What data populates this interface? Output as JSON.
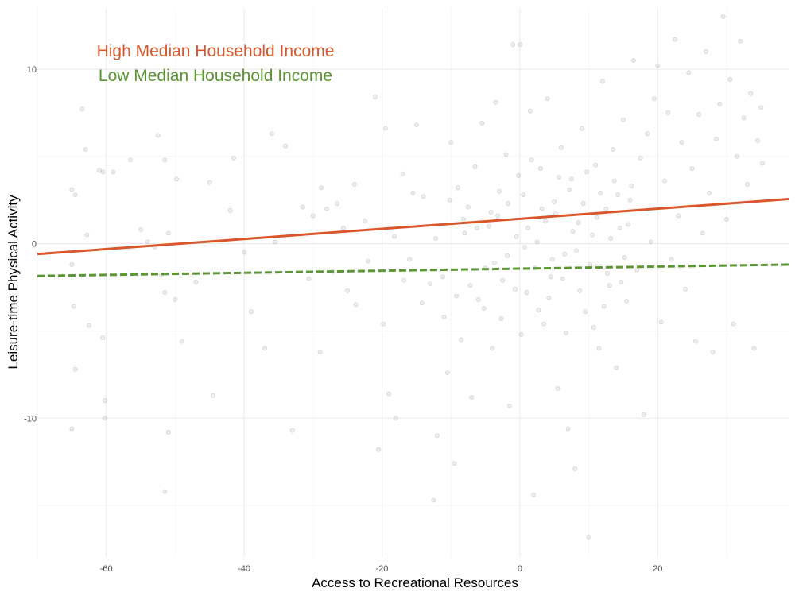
{
  "chart_data": {
    "type": "scatter",
    "title": "",
    "xlabel": "Access to Recreational Resources",
    "ylabel": "Leisure-time Physical Activity",
    "xlim": [
      -70,
      39
    ],
    "ylim": [
      -18,
      13.5
    ],
    "x_ticks": [
      -60,
      -40,
      -20,
      0,
      20
    ],
    "y_ticks": [
      -10,
      0,
      10
    ],
    "grid": true,
    "legend_position": "top-left",
    "points_color": "#999999",
    "series": [
      {
        "name": "High Median Household Income",
        "type": "line",
        "style": "solid",
        "color": "#d9572b",
        "x": [
          -70,
          39
        ],
        "y": [
          -0.6,
          2.55
        ]
      },
      {
        "name": "Low Median Household Income",
        "type": "line",
        "style": "dashed",
        "color": "#5a9632",
        "x": [
          -70,
          39
        ],
        "y": [
          -1.85,
          -1.2
        ]
      }
    ],
    "scatter_points": [
      [
        -65,
        3.1
      ],
      [
        -64.5,
        2.8
      ],
      [
        -63.5,
        7.7
      ],
      [
        -63,
        5.4
      ],
      [
        -62.8,
        0.5
      ],
      [
        -65,
        -1.2
      ],
      [
        -64.7,
        -3.6
      ],
      [
        -64.5,
        -7.2
      ],
      [
        -65,
        -10.6
      ],
      [
        -61,
        4.2
      ],
      [
        -60.5,
        4.1
      ],
      [
        -59,
        4.1
      ],
      [
        -60.5,
        -5.4
      ],
      [
        -60.2,
        -9.0
      ],
      [
        -60.2,
        -10.0
      ],
      [
        -62.5,
        -4.7
      ],
      [
        -56.5,
        4.8
      ],
      [
        -55,
        0.8
      ],
      [
        -54,
        0.1
      ],
      [
        -53,
        -0.2
      ],
      [
        -52.5,
        6.2
      ],
      [
        -51.5,
        4.8
      ],
      [
        -51,
        0.6
      ],
      [
        -52,
        -1.8
      ],
      [
        -51.5,
        -2.8
      ],
      [
        -50,
        -3.2
      ],
      [
        -51,
        -10.8
      ],
      [
        -51.5,
        -14.2
      ],
      [
        -49.8,
        3.7
      ],
      [
        -49,
        -5.6
      ],
      [
        -47,
        -2.2
      ],
      [
        -45,
        3.5
      ],
      [
        -44.5,
        -8.7
      ],
      [
        -42,
        1.9
      ],
      [
        -41.5,
        4.9
      ],
      [
        -40,
        -0.5
      ],
      [
        -39,
        -3.9
      ],
      [
        -37,
        -6.0
      ],
      [
        -36,
        6.3
      ],
      [
        -35.5,
        0.1
      ],
      [
        -34,
        5.6
      ],
      [
        -33,
        -10.7
      ],
      [
        -31.5,
        2.1
      ],
      [
        -30,
        1.6
      ],
      [
        -29,
        -6.2
      ],
      [
        -28,
        2.0
      ],
      [
        -26.5,
        2.3
      ],
      [
        -25,
        -2.7
      ],
      [
        -24,
        3.4
      ],
      [
        -22,
        -1.0
      ],
      [
        -21,
        8.4
      ],
      [
        -20.5,
        -11.8
      ],
      [
        -19.5,
        6.6
      ],
      [
        -19,
        -8.6
      ],
      [
        -18,
        -10.0
      ],
      [
        -17,
        4.0
      ],
      [
        -16,
        -0.9
      ],
      [
        -15,
        6.8
      ],
      [
        -14,
        2.7
      ],
      [
        -13,
        -2.3
      ],
      [
        -12.5,
        -14.7
      ],
      [
        -12,
        -11.0
      ],
      [
        -11,
        -4.2
      ],
      [
        -10.5,
        -7.4
      ],
      [
        -10,
        5.8
      ],
      [
        -9.5,
        -12.6
      ],
      [
        -9,
        3.2
      ],
      [
        -8.5,
        -5.5
      ],
      [
        -8,
        0.6
      ],
      [
        -7.5,
        2.1
      ],
      [
        -7,
        -8.8
      ],
      [
        -6.5,
        4.4
      ],
      [
        -6,
        -3.2
      ],
      [
        -5.5,
        6.9
      ],
      [
        -5,
        -1.4
      ],
      [
        -4.5,
        1.0
      ],
      [
        -4,
        -6.0
      ],
      [
        -3.5,
        8.1
      ],
      [
        -3,
        3.0
      ],
      [
        -2.5,
        -2.1
      ],
      [
        -2,
        5.1
      ],
      [
        -1.5,
        -9.3
      ],
      [
        -1,
        11.4
      ],
      [
        -0.5,
        0.4
      ],
      [
        0,
        11.4
      ],
      [
        0.2,
        -5.2
      ],
      [
        0.5,
        2.8
      ],
      [
        1,
        -2.8
      ],
      [
        1.5,
        7.6
      ],
      [
        2,
        -14.4
      ],
      [
        2.5,
        0.1
      ],
      [
        3,
        4.3
      ],
      [
        3.5,
        -4.6
      ],
      [
        4,
        8.3
      ],
      [
        4.5,
        -1.9
      ],
      [
        5,
        2.4
      ],
      [
        5.5,
        -8.3
      ],
      [
        6,
        5.5
      ],
      [
        6.5,
        -0.6
      ],
      [
        7,
        -10.6
      ],
      [
        7.5,
        3.7
      ],
      [
        8,
        -12.9
      ],
      [
        8.5,
        1.2
      ],
      [
        9,
        6.6
      ],
      [
        9.5,
        -3.9
      ],
      [
        10,
        -16.8
      ],
      [
        10.5,
        0.5
      ],
      [
        11,
        4.5
      ],
      [
        11.5,
        -6.0
      ],
      [
        12,
        9.3
      ],
      [
        12.5,
        2.0
      ],
      [
        13,
        -2.4
      ],
      [
        13.5,
        5.4
      ],
      [
        14,
        -7.1
      ],
      [
        14.5,
        0.9
      ],
      [
        15,
        7.1
      ],
      [
        15.5,
        -3.3
      ],
      [
        16,
        2.5
      ],
      [
        16.5,
        10.5
      ],
      [
        17,
        -1.5
      ],
      [
        17.5,
        4.9
      ],
      [
        18,
        -9.8
      ],
      [
        18.5,
        6.3
      ],
      [
        19,
        0.1
      ],
      [
        19.5,
        8.3
      ],
      [
        20,
        10.2
      ],
      [
        20.5,
        -4.5
      ],
      [
        21,
        3.6
      ],
      [
        21.5,
        7.5
      ],
      [
        22,
        -0.9
      ],
      [
        22.5,
        11.7
      ],
      [
        23,
        1.6
      ],
      [
        23.5,
        5.8
      ],
      [
        24,
        -2.6
      ],
      [
        24.5,
        9.8
      ],
      [
        25,
        4.3
      ],
      [
        25.5,
        -5.6
      ],
      [
        26,
        7.4
      ],
      [
        26.5,
        0.6
      ],
      [
        27,
        11.0
      ],
      [
        27.5,
        2.9
      ],
      [
        28,
        -6.2
      ],
      [
        28.5,
        6.0
      ],
      [
        29,
        8.0
      ],
      [
        29.5,
        13.0
      ],
      [
        30,
        1.4
      ],
      [
        30.5,
        9.4
      ],
      [
        31,
        -4.6
      ],
      [
        31.5,
        5.0
      ],
      [
        32,
        11.6
      ],
      [
        32.5,
        7.2
      ],
      [
        33,
        3.4
      ],
      [
        33.5,
        8.6
      ],
      [
        34,
        -6.0
      ],
      [
        34.5,
        5.9
      ],
      [
        35,
        7.8
      ],
      [
        35.2,
        4.6
      ],
      [
        -3.2,
        1.6
      ],
      [
        -1.8,
        -0.7
      ],
      [
        -0.2,
        3.9
      ],
      [
        1.2,
        0.9
      ],
      [
        2.2,
        -1.4
      ],
      [
        3.2,
        2.0
      ],
      [
        4.2,
        -3.1
      ],
      [
        5.2,
        1.7
      ],
      [
        6.2,
        -2.0
      ],
      [
        7.2,
        3.1
      ],
      [
        8.2,
        -0.4
      ],
      [
        9.2,
        2.3
      ],
      [
        10.2,
        -1.2
      ],
      [
        11.2,
        1.5
      ],
      [
        12.2,
        -3.6
      ],
      [
        13.2,
        0.3
      ],
      [
        14.2,
        2.8
      ],
      [
        15.2,
        -0.8
      ],
      [
        16.2,
        3.3
      ],
      [
        -7.2,
        -2.4
      ],
      [
        -6.2,
        0.9
      ],
      [
        -5.2,
        -3.7
      ],
      [
        -4.2,
        1.8
      ],
      [
        -3.7,
        -1.1
      ],
      [
        -2.7,
        -4.3
      ],
      [
        -1.7,
        2.3
      ],
      [
        -0.7,
        -2.6
      ],
      [
        0.7,
        -0.2
      ],
      [
        1.7,
        4.8
      ],
      [
        2.7,
        -3.8
      ],
      [
        3.7,
        1.3
      ],
      [
        4.7,
        -0.9
      ],
      [
        5.7,
        3.8
      ],
      [
        6.7,
        -5.1
      ],
      [
        7.7,
        0.7
      ],
      [
        8.7,
        -2.7
      ],
      [
        9.7,
        4.1
      ],
      [
        10.7,
        -4.8
      ],
      [
        11.7,
        2.9
      ],
      [
        12.7,
        -1.7
      ],
      [
        13.7,
        3.6
      ],
      [
        14.7,
        -2.2
      ],
      [
        15.7,
        1.1
      ],
      [
        -12.2,
        0.3
      ],
      [
        -11.2,
        -1.9
      ],
      [
        -10.2,
        2.5
      ],
      [
        -9.2,
        -3.0
      ],
      [
        -8.2,
        1.4
      ],
      [
        -14.2,
        -3.4
      ],
      [
        -15.5,
        2.9
      ],
      [
        -16.8,
        -2.1
      ],
      [
        -18.2,
        0.4
      ],
      [
        -19.8,
        -4.6
      ],
      [
        -22.5,
        1.3
      ],
      [
        -23.8,
        -3.5
      ],
      [
        -25.6,
        0.9
      ],
      [
        -27.1,
        -1.6
      ],
      [
        -28.8,
        3.2
      ],
      [
        -30.6,
        -2.0
      ]
    ]
  }
}
